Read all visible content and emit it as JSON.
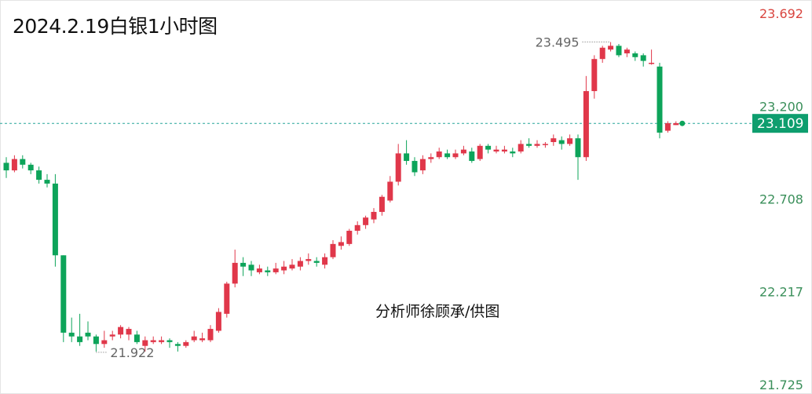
{
  "header": {
    "title": "2024.2.19白银1小时图"
  },
  "watermark": "分析师徐顾承/供图",
  "colors": {
    "up": "#e0374a",
    "down": "#0da45a",
    "price_line": "#26a69a",
    "current_label_bg": "#0e9e6e"
  },
  "chart_data": {
    "type": "candlestick",
    "title": "2024.2.19白银1小时图",
    "ylim": [
      21.725,
      23.692
    ],
    "y_ticks": [
      "23.692",
      "23.200",
      "22.708",
      "22.217",
      "21.725"
    ],
    "current_price": "23.109",
    "annotations": {
      "high": "23.495",
      "low": "21.922"
    },
    "candles": [
      [
        22.9,
        22.86,
        22.93,
        22.82
      ],
      [
        22.86,
        22.92,
        22.94,
        22.85
      ],
      [
        22.92,
        22.89,
        22.94,
        22.87
      ],
      [
        22.89,
        22.86,
        22.9,
        22.84
      ],
      [
        22.86,
        22.81,
        22.88,
        22.79
      ],
      [
        22.81,
        22.79,
        22.84,
        22.77
      ],
      [
        22.79,
        22.41,
        22.84,
        22.35
      ],
      [
        22.41,
        22.0,
        22.41,
        21.95
      ],
      [
        22.0,
        21.98,
        22.08,
        21.95
      ],
      [
        21.98,
        21.95,
        22.1,
        21.93
      ],
      [
        22.0,
        21.98,
        22.06,
        21.96
      ],
      [
        21.98,
        21.94,
        21.99,
        21.9
      ],
      [
        21.94,
        21.96,
        22.01,
        21.92
      ],
      [
        21.98,
        21.99,
        22.01,
        21.96
      ],
      [
        21.99,
        22.03,
        22.04,
        21.97
      ],
      [
        21.99,
        22.02,
        22.03,
        21.96
      ],
      [
        21.99,
        21.95,
        22.01,
        21.94
      ],
      [
        21.93,
        21.96,
        21.98,
        21.9
      ],
      [
        21.95,
        21.96,
        21.98,
        21.94
      ],
      [
        21.95,
        21.96,
        21.98,
        21.94
      ],
      [
        21.96,
        21.95,
        21.97,
        21.92
      ],
      [
        21.94,
        21.93,
        21.95,
        21.9
      ],
      [
        21.93,
        21.95,
        21.96,
        21.92
      ],
      [
        21.96,
        21.98,
        22.01,
        21.95
      ],
      [
        21.96,
        21.97,
        22.0,
        21.95
      ],
      [
        21.96,
        22.02,
        22.04,
        21.95
      ],
      [
        22.01,
        22.11,
        22.13,
        22.0
      ],
      [
        22.1,
        22.26,
        22.27,
        22.08
      ],
      [
        22.26,
        22.37,
        22.44,
        22.24
      ],
      [
        22.37,
        22.35,
        22.4,
        22.3
      ],
      [
        22.36,
        22.33,
        22.38,
        22.3
      ],
      [
        22.32,
        22.34,
        22.36,
        22.31
      ],
      [
        22.33,
        22.32,
        22.35,
        22.3
      ],
      [
        22.32,
        22.34,
        22.37,
        22.31
      ],
      [
        22.33,
        22.35,
        22.38,
        22.31
      ],
      [
        22.34,
        22.36,
        22.39,
        22.33
      ],
      [
        22.35,
        22.38,
        22.4,
        22.33
      ],
      [
        22.38,
        22.39,
        22.42,
        22.36
      ],
      [
        22.38,
        22.37,
        22.4,
        22.35
      ],
      [
        22.36,
        22.4,
        22.42,
        22.34
      ],
      [
        22.4,
        22.47,
        22.49,
        22.39
      ],
      [
        22.46,
        22.48,
        22.51,
        22.44
      ],
      [
        22.47,
        22.54,
        22.55,
        22.46
      ],
      [
        22.54,
        22.57,
        22.59,
        22.52
      ],
      [
        22.57,
        22.61,
        22.62,
        22.55
      ],
      [
        22.6,
        22.64,
        22.66,
        22.58
      ],
      [
        22.64,
        22.72,
        22.73,
        22.62
      ],
      [
        22.7,
        22.8,
        22.83,
        22.69
      ],
      [
        22.8,
        22.95,
        23.0,
        22.78
      ],
      [
        22.95,
        22.91,
        23.02,
        22.89
      ],
      [
        22.91,
        22.85,
        22.93,
        22.83
      ],
      [
        22.86,
        22.92,
        22.94,
        22.84
      ],
      [
        22.92,
        22.93,
        22.95,
        22.9
      ],
      [
        22.93,
        22.96,
        22.98,
        22.92
      ],
      [
        22.95,
        22.93,
        22.97,
        22.92
      ],
      [
        22.93,
        22.95,
        22.97,
        22.92
      ],
      [
        22.95,
        22.97,
        22.99,
        22.94
      ],
      [
        22.96,
        22.91,
        22.98,
        22.9
      ],
      [
        22.92,
        22.99,
        23.0,
        22.91
      ],
      [
        22.99,
        22.97,
        23.0,
        22.95
      ],
      [
        22.96,
        22.97,
        22.99,
        22.95
      ],
      [
        22.96,
        22.97,
        22.99,
        22.95
      ],
      [
        22.96,
        22.95,
        22.98,
        22.93
      ],
      [
        22.96,
        23.0,
        23.02,
        22.95
      ],
      [
        23.0,
        22.99,
        23.03,
        22.98
      ],
      [
        22.99,
        23.0,
        23.02,
        22.98
      ],
      [
        23.0,
        23.0,
        23.01,
        22.98
      ],
      [
        23.01,
        23.03,
        23.05,
        22.99
      ],
      [
        23.02,
        23.0,
        23.04,
        22.97
      ],
      [
        23.0,
        23.03,
        23.05,
        22.99
      ],
      [
        23.03,
        22.93,
        23.05,
        22.81
      ],
      [
        22.93,
        23.28,
        23.36,
        22.91
      ],
      [
        23.28,
        23.45,
        23.47,
        23.24
      ],
      [
        23.45,
        23.51,
        23.52,
        23.43
      ],
      [
        23.5,
        23.52,
        23.54,
        23.49
      ],
      [
        23.52,
        23.47,
        23.53,
        23.46
      ],
      [
        23.48,
        23.5,
        23.51,
        23.46
      ],
      [
        23.48,
        23.46,
        23.49,
        23.44
      ],
      [
        23.47,
        23.44,
        23.48,
        23.41
      ],
      [
        23.43,
        23.43,
        23.5,
        23.42
      ],
      [
        23.41,
        23.06,
        23.43,
        23.03
      ],
      [
        23.07,
        23.11,
        23.12,
        23.06
      ],
      [
        23.1,
        23.11,
        23.12,
        23.1
      ]
    ]
  }
}
